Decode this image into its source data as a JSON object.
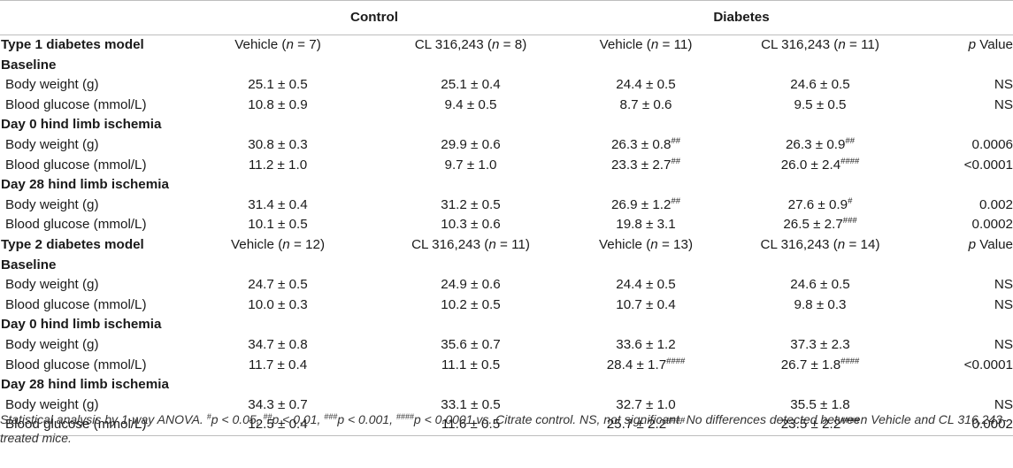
{
  "header": {
    "control": "Control",
    "diabetes": "Diabetes",
    "sublabel_p": "p",
    "sublabel_value": " Value"
  },
  "sections": [
    {
      "title": "Type 1 diabetes model",
      "group_cols": [
        {
          "name": "Vehicle",
          "n": "7"
        },
        {
          "name": "CL 316,243",
          "n": "8"
        },
        {
          "name": "Vehicle",
          "n": "11"
        },
        {
          "name": "CL 316,243",
          "n": "11"
        }
      ],
      "timepoints": [
        {
          "title": "Baseline",
          "rows": [
            {
              "label": "Body weight (g)",
              "vals": [
                {
                  "v": "25.1 ± 0.5",
                  "s": ""
                },
                {
                  "v": "25.1 ± 0.4",
                  "s": ""
                },
                {
                  "v": "24.4 ± 0.5",
                  "s": ""
                },
                {
                  "v": "24.6 ± 0.5",
                  "s": ""
                }
              ],
              "p": "NS"
            },
            {
              "label": "Blood glucose (mmol/L)",
              "vals": [
                {
                  "v": "10.8 ± 0.9",
                  "s": ""
                },
                {
                  "v": "9.4 ± 0.5",
                  "s": ""
                },
                {
                  "v": "8.7 ± 0.6",
                  "s": ""
                },
                {
                  "v": "9.5 ± 0.5",
                  "s": ""
                }
              ],
              "p": "NS"
            }
          ]
        },
        {
          "title": "Day 0 hind limb ischemia",
          "rows": [
            {
              "label": "Body weight (g)",
              "vals": [
                {
                  "v": "30.8 ± 0.3",
                  "s": ""
                },
                {
                  "v": "29.9 ± 0.6",
                  "s": ""
                },
                {
                  "v": "26.3 ± 0.8",
                  "s": "##"
                },
                {
                  "v": "26.3 ± 0.9",
                  "s": "##"
                }
              ],
              "p": "0.0006"
            },
            {
              "label": "Blood glucose (mmol/L)",
              "vals": [
                {
                  "v": "11.2 ± 1.0",
                  "s": ""
                },
                {
                  "v": "9.7 ± 1.0",
                  "s": ""
                },
                {
                  "v": "23.3 ± 2.7",
                  "s": "##"
                },
                {
                  "v": "26.0 ± 2.4",
                  "s": "####"
                }
              ],
              "p": "<0.0001"
            }
          ]
        },
        {
          "title": "Day 28 hind limb ischemia",
          "rows": [
            {
              "label": "Body weight (g)",
              "vals": [
                {
                  "v": "31.4 ± 0.4",
                  "s": ""
                },
                {
                  "v": "31.2 ± 0.5",
                  "s": ""
                },
                {
                  "v": "26.9 ± 1.2",
                  "s": "##"
                },
                {
                  "v": "27.6 ± 0.9",
                  "s": "#"
                }
              ],
              "p": "0.002"
            },
            {
              "label": "Blood glucose (mmol/L)",
              "vals": [
                {
                  "v": "10.1 ± 0.5",
                  "s": ""
                },
                {
                  "v": "10.3 ± 0.6",
                  "s": ""
                },
                {
                  "v": "19.8 ± 3.1",
                  "s": ""
                },
                {
                  "v": "26.5 ± 2.7",
                  "s": "###"
                }
              ],
              "p": "0.0002"
            }
          ]
        }
      ]
    },
    {
      "title": "Type 2 diabetes model",
      "group_cols": [
        {
          "name": "Vehicle",
          "n": "12"
        },
        {
          "name": "CL 316,243",
          "n": "11"
        },
        {
          "name": "Vehicle",
          "n": "13"
        },
        {
          "name": "CL 316,243",
          "n": "14"
        }
      ],
      "timepoints": [
        {
          "title": "Baseline",
          "rows": [
            {
              "label": "Body weight (g)",
              "vals": [
                {
                  "v": "24.7 ± 0.5",
                  "s": ""
                },
                {
                  "v": "24.9 ± 0.6",
                  "s": ""
                },
                {
                  "v": "24.4 ± 0.5",
                  "s": ""
                },
                {
                  "v": "24.6 ± 0.5",
                  "s": ""
                }
              ],
              "p": "NS"
            },
            {
              "label": "Blood glucose (mmol/L)",
              "vals": [
                {
                  "v": "10.0 ± 0.3",
                  "s": ""
                },
                {
                  "v": "10.2 ± 0.5",
                  "s": ""
                },
                {
                  "v": "10.7 ± 0.4",
                  "s": ""
                },
                {
                  "v": "9.8 ± 0.3",
                  "s": ""
                }
              ],
              "p": "NS"
            }
          ]
        },
        {
          "title": "Day 0 hind limb ischemia",
          "rows": [
            {
              "label": "Body weight (g)",
              "vals": [
                {
                  "v": "34.7 ± 0.8",
                  "s": ""
                },
                {
                  "v": "35.6 ± 0.7",
                  "s": ""
                },
                {
                  "v": "33.6 ± 1.2",
                  "s": ""
                },
                {
                  "v": "37.3 ± 2.3",
                  "s": ""
                }
              ],
              "p": "NS"
            },
            {
              "label": "Blood glucose (mmol/L)",
              "vals": [
                {
                  "v": "11.7 ± 0.4",
                  "s": ""
                },
                {
                  "v": "11.1 ± 0.5",
                  "s": ""
                },
                {
                  "v": "28.4 ± 1.7",
                  "s": "####"
                },
                {
                  "v": "26.7 ± 1.8",
                  "s": "####"
                }
              ],
              "p": "<0.0001"
            }
          ]
        },
        {
          "title": "Day 28 hind limb ischemia",
          "rows": [
            {
              "label": "Body weight (g)",
              "vals": [
                {
                  "v": "34.3 ± 0.7",
                  "s": ""
                },
                {
                  "v": "33.1 ± 0.5",
                  "s": ""
                },
                {
                  "v": "32.7 ± 1.0",
                  "s": ""
                },
                {
                  "v": "35.5 ± 1.8",
                  "s": ""
                }
              ],
              "p": "NS"
            },
            {
              "label": "Blood glucose (mmol/L)",
              "vals": [
                {
                  "v": "12.5 ± 0.4",
                  "s": ""
                },
                {
                  "v": "11.6 ± 0.5",
                  "s": ""
                },
                {
                  "v": "25.7 ± 2.2",
                  "s": "####"
                },
                {
                  "v": "23.5 ± 2.2",
                  "s": "####"
                }
              ],
              "p": "0.0002"
            }
          ]
        }
      ]
    }
  ],
  "footnote": {
    "lead": "Statistical analysis by 1-way ANOVA. ",
    "items": [
      {
        "mark": "#",
        "text": "p < 0.05, "
      },
      {
        "mark": "##",
        "text": "p < 0.01, "
      },
      {
        "mark": "###",
        "text": "p < 0.001, "
      },
      {
        "mark": "####",
        "text": "p < 0.0001"
      }
    ],
    "tail": " vs. Citrate control. NS, not significant. No differences detected between Vehicle and CL 316,243-treated mice."
  }
}
